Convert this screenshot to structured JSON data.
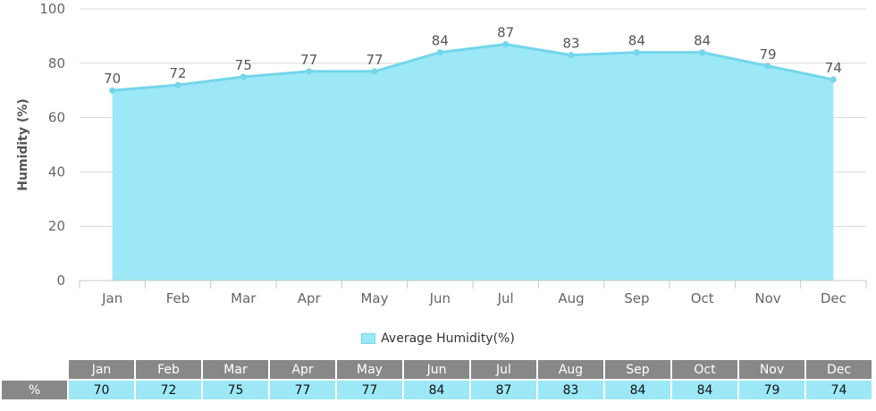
{
  "chart_data": {
    "type": "area",
    "categories": [
      "Jan",
      "Feb",
      "Mar",
      "Apr",
      "May",
      "Jun",
      "Jul",
      "Aug",
      "Sep",
      "Oct",
      "Nov",
      "Dec"
    ],
    "series": [
      {
        "name": "Average Humidity(%)",
        "values": [
          70,
          72,
          75,
          77,
          77,
          84,
          87,
          83,
          84,
          84,
          79,
          74
        ]
      }
    ],
    "ylabel": "Humidity (%)",
    "ylim": [
      0,
      100
    ],
    "yticks": [
      0,
      20,
      40,
      60,
      80,
      100
    ],
    "grid": true,
    "legend": "bottom-center",
    "data_labels": true,
    "colors": {
      "fill": "#9ce8f6",
      "line": "#73d6ec",
      "grid": "#d9d9d9",
      "axis_text": "#666666"
    }
  },
  "legend": {
    "label": "Average Humidity(%)"
  },
  "table": {
    "row_label": "%",
    "headers": [
      "Jan",
      "Feb",
      "Mar",
      "Apr",
      "May",
      "Jun",
      "Jul",
      "Aug",
      "Sep",
      "Oct",
      "Nov",
      "Dec"
    ],
    "values": [
      "70",
      "72",
      "75",
      "77",
      "77",
      "84",
      "87",
      "83",
      "84",
      "84",
      "79",
      "74"
    ]
  }
}
